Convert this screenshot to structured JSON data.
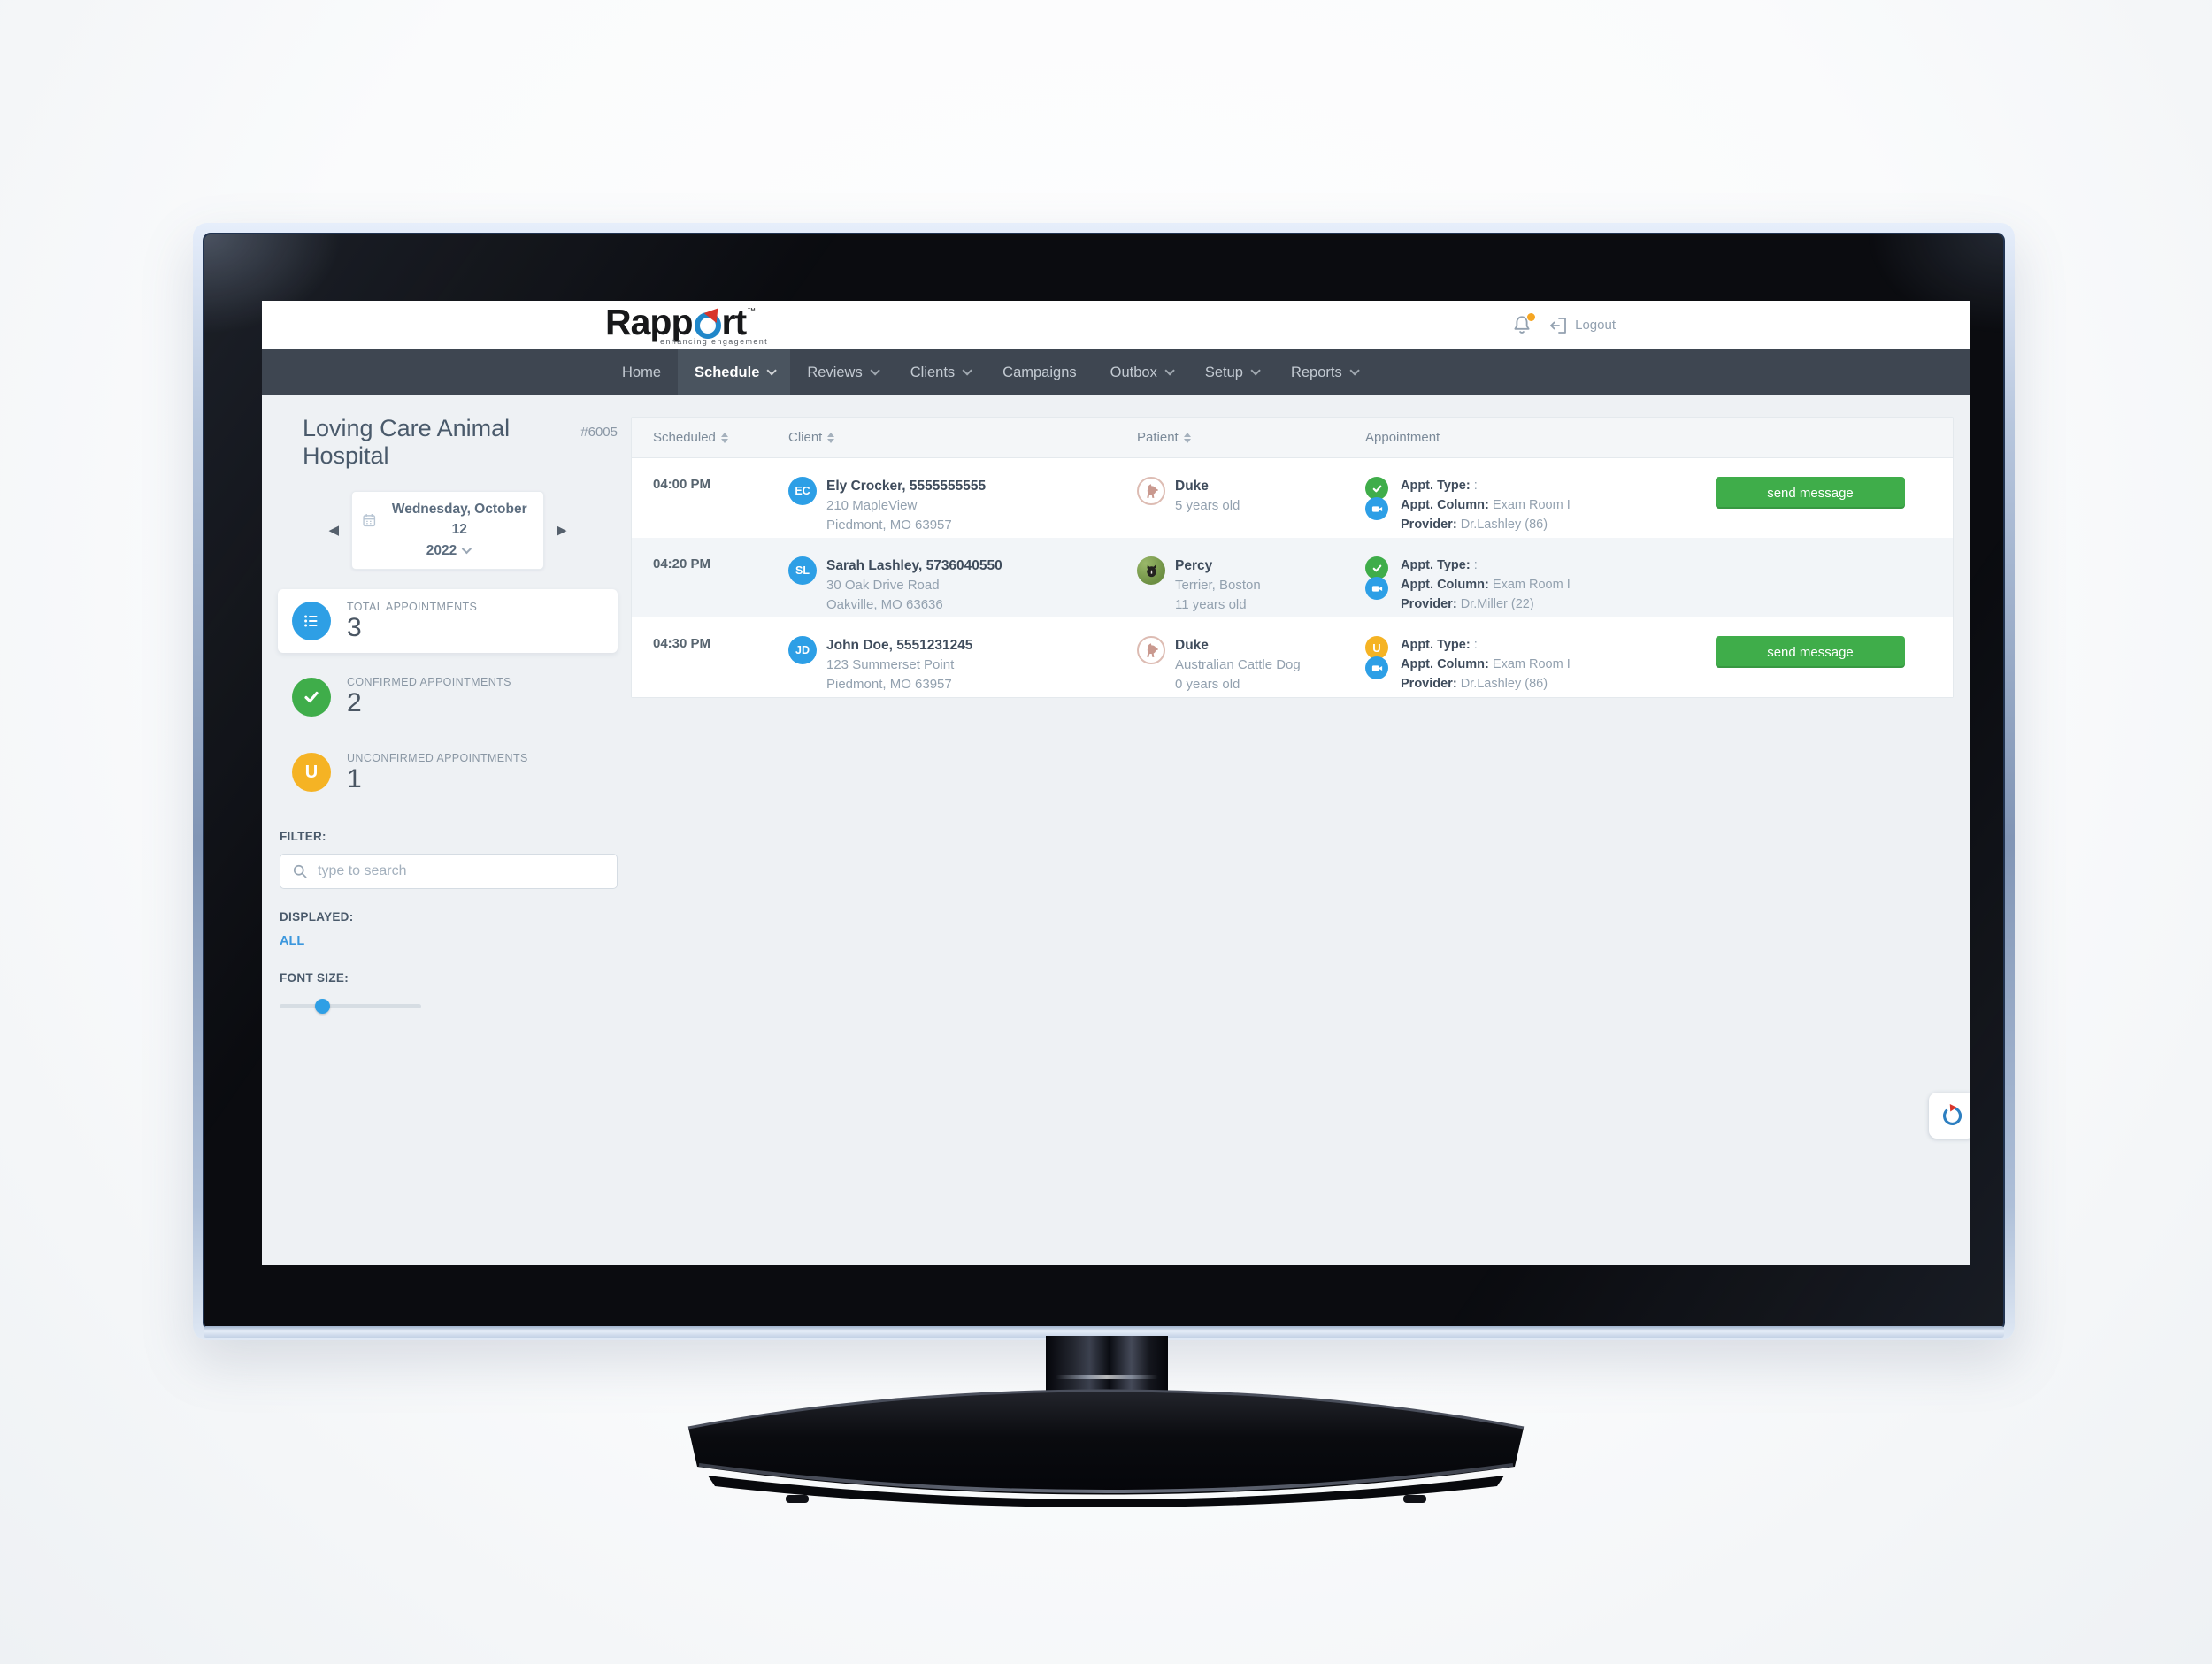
{
  "header": {
    "logout_label": "Logout",
    "notification_dot_color": "#f5a623"
  },
  "logo": {
    "part1": "Rapp",
    "part2": "rt",
    "tm": "™",
    "tagline": "enhancing engagement"
  },
  "nav": {
    "items": [
      {
        "label": "Home",
        "caret": false,
        "active": false
      },
      {
        "label": "Schedule",
        "caret": true,
        "active": true
      },
      {
        "label": "Reviews",
        "caret": true,
        "active": false
      },
      {
        "label": "Clients",
        "caret": true,
        "active": false
      },
      {
        "label": "Campaigns",
        "caret": false,
        "active": false
      },
      {
        "label": "Outbox",
        "caret": true,
        "active": false
      },
      {
        "label": "Setup",
        "caret": true,
        "active": false
      },
      {
        "label": "Reports",
        "caret": true,
        "active": false
      }
    ]
  },
  "sidebar": {
    "clinic_name": "Loving Care Animal Hospital",
    "clinic_number": "#6005",
    "date_line1": "Wednesday, October 12",
    "date_line2": "2022",
    "stats": [
      {
        "label": "TOTAL APPOINTMENTS",
        "value": "3",
        "icon": "list-icon",
        "color": "#2e9fe5",
        "selected": true
      },
      {
        "label": "CONFIRMED APPOINTMENTS",
        "value": "2",
        "icon": "check-icon",
        "color": "#3fad4a",
        "selected": false
      },
      {
        "label": "UNCONFIRMED APPOINTMENTS",
        "value": "1",
        "icon": "letter-u-icon",
        "color": "#f5b324",
        "selected": false
      }
    ],
    "filter_label": "FILTER:",
    "search_placeholder": "type to search",
    "displayed_label": "DISPLAYED:",
    "displayed_value": "ALL",
    "font_size_label": "FONT SIZE:",
    "font_size_percent": 30
  },
  "table": {
    "columns": [
      {
        "label": "Scheduled",
        "sortable": true
      },
      {
        "label": "Client",
        "sortable": true
      },
      {
        "label": "Patient",
        "sortable": true
      },
      {
        "label": "Appointment",
        "sortable": false
      }
    ],
    "rows": [
      {
        "time": "04:00 PM",
        "client": {
          "initials": "EC",
          "name": "Ely Crocker, 5555555555",
          "address1": "210 MapleView",
          "address2": "Piedmont, MO 63957"
        },
        "patient": {
          "name": "Duke",
          "line1": "5 years old",
          "line2": "",
          "avatar": "dog-outline"
        },
        "appointment": {
          "status": "confirmed",
          "type_label": "Appt. Type:",
          "type_value": ":",
          "column_label": "Appt. Column:",
          "column_value": "Exam Room I",
          "provider_label": "Provider:",
          "provider_value": "Dr.Lashley (86)"
        },
        "action": "send message"
      },
      {
        "time": "04:20 PM",
        "client": {
          "initials": "SL",
          "name": "Sarah Lashley, 5736040550",
          "address1": "30 Oak Drive Road",
          "address2": "Oakville, MO 63636"
        },
        "patient": {
          "name": "Percy",
          "line1": "Terrier, Boston",
          "line2": "11 years old",
          "avatar": "dog-photo"
        },
        "appointment": {
          "status": "confirmed",
          "type_label": "Appt. Type:",
          "type_value": ":",
          "column_label": "Appt. Column:",
          "column_value": "Exam Room I",
          "provider_label": "Provider:",
          "provider_value": "Dr.Miller (22)"
        },
        "action": null
      },
      {
        "time": "04:30 PM",
        "client": {
          "initials": "JD",
          "name": "John Doe, 5551231245",
          "address1": "123 Summerset Point",
          "address2": "Piedmont, MO 63957"
        },
        "patient": {
          "name": "Duke",
          "line1": "Australian Cattle Dog",
          "line2": "0 years old",
          "avatar": "dog-outline"
        },
        "appointment": {
          "status": "unconfirmed",
          "type_label": "Appt. Type:",
          "type_value": ":",
          "column_label": "Appt. Column:",
          "column_value": "Exam Room I",
          "provider_label": "Provider:",
          "provider_value": "Dr.Lashley (86)"
        },
        "action": "send message"
      }
    ]
  },
  "colors": {
    "accent_blue": "#2e9fe5",
    "confirmed_green": "#3fad4a",
    "unconfirmed_yellow": "#f5b324",
    "nav_dark": "#3e4651",
    "link_blue": "#3b97dd",
    "button_green": "#3fad4a"
  }
}
